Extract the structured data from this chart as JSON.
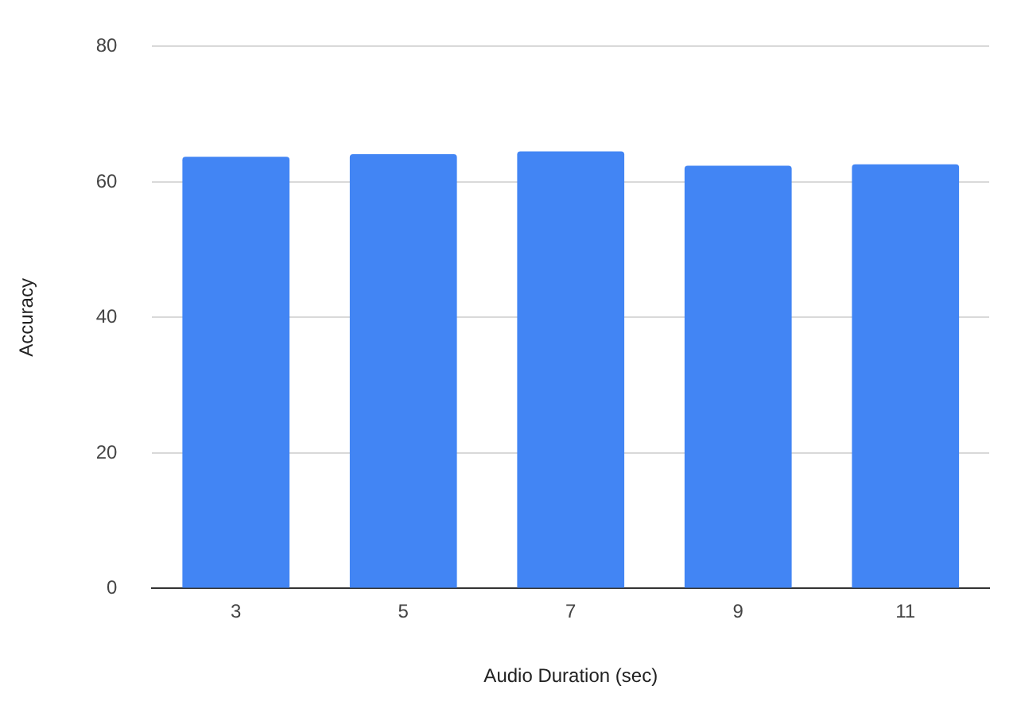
{
  "chart_data": {
    "type": "bar",
    "xlabel": "Audio Duration (sec)",
    "ylabel": "Accuracy",
    "categories": [
      "3",
      "5",
      "7",
      "9",
      "11"
    ],
    "values": [
      63.7,
      64.1,
      64.5,
      62.4,
      62.6
    ],
    "color": "#4285f4",
    "ylim": [
      0,
      80
    ],
    "yticks": [
      0,
      20,
      40,
      60,
      80
    ],
    "grid": "y"
  }
}
